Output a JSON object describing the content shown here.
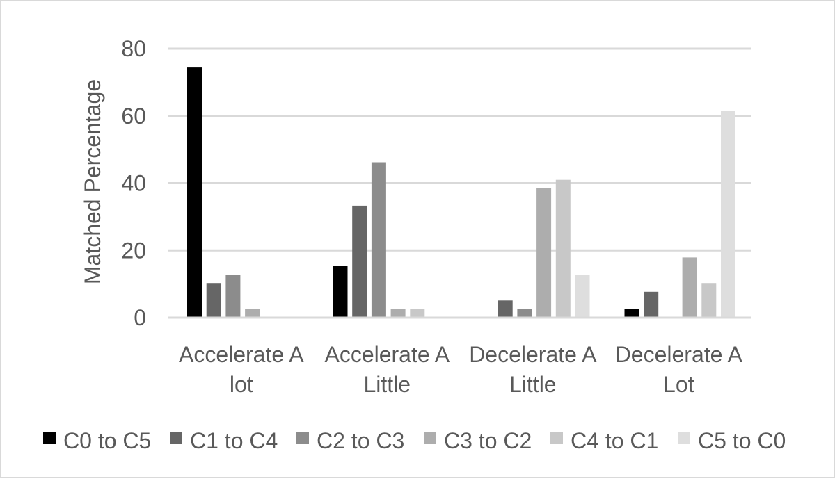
{
  "chart_data": {
    "type": "bar",
    "title": "",
    "xlabel": "",
    "ylabel": "Matched Percentage",
    "ylim": [
      0,
      80
    ],
    "yticks": [
      0,
      20,
      40,
      60,
      80
    ],
    "grid": true,
    "legend_position": "bottom",
    "categories": [
      [
        "Accelerate A",
        "lot"
      ],
      [
        "Accelerate A",
        "Little"
      ],
      [
        "Decelerate A",
        "Little"
      ],
      [
        "Decelerate A",
        "Lot"
      ]
    ],
    "series": [
      {
        "name": "C0 to C5",
        "color": "#000000",
        "values": [
          74.4,
          15.4,
          0,
          2.6
        ]
      },
      {
        "name": "C1 to C4",
        "color": "#666666",
        "values": [
          10.3,
          33.3,
          5.1,
          7.7
        ]
      },
      {
        "name": "C2 to C3",
        "color": "#8c8c8c",
        "values": [
          12.8,
          46.2,
          2.6,
          0
        ]
      },
      {
        "name": "C3 to C2",
        "color": "#adadad",
        "values": [
          2.6,
          2.6,
          38.5,
          17.9
        ]
      },
      {
        "name": "C4 to C1",
        "color": "#c8c8c8",
        "values": [
          0,
          2.6,
          41.0,
          10.3
        ]
      },
      {
        "name": "C5 to C0",
        "color": "#dedede",
        "values": [
          0,
          0,
          12.8,
          61.5
        ]
      }
    ]
  }
}
